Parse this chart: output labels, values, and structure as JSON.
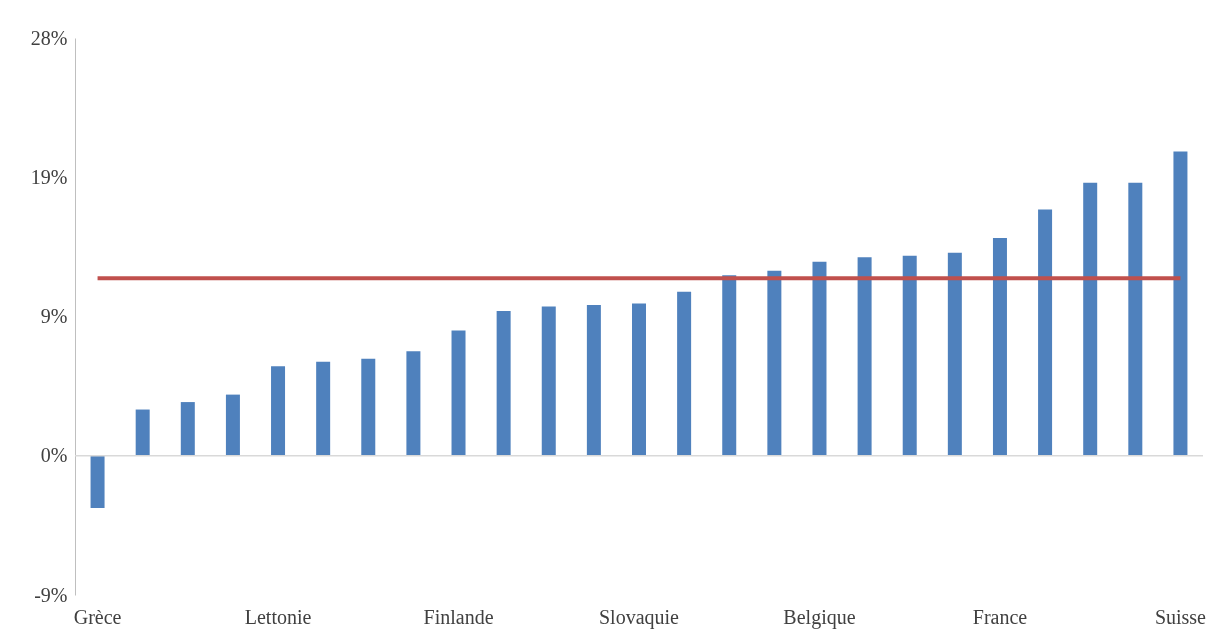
{
  "chart_data": {
    "type": "bar",
    "categories": [
      "Grèce",
      null,
      null,
      null,
      "Lettonie",
      null,
      null,
      null,
      "Finlande",
      null,
      null,
      null,
      "Slovaquie",
      null,
      null,
      null,
      "Belgique",
      null,
      null,
      null,
      "France",
      null,
      null,
      null,
      "Suisse"
    ],
    "series": [
      {
        "color": "#4f81bd",
        "values": [
          -3.5,
          3.1,
          3.6,
          4.1,
          6.0,
          6.3,
          6.5,
          7.0,
          8.4,
          9.7,
          10.0,
          10.1,
          10.2,
          11.0,
          12.1,
          12.4,
          13.0,
          13.3,
          13.4,
          13.6,
          14.6,
          16.5,
          18.3,
          18.3,
          20.4
        ]
      }
    ],
    "ylim": [
      -9.33,
      28
    ],
    "yticks": [
      {
        "value": -9.33,
        "label": "-9%"
      },
      {
        "value": 0,
        "label": "0%"
      },
      {
        "value": 9.33,
        "label": "9%"
      },
      {
        "value": 18.67,
        "label": "19%"
      },
      {
        "value": 28,
        "label": "28%"
      }
    ],
    "ref_lines": [
      {
        "axis": "y",
        "value": 11.9,
        "color": "#c0504d"
      }
    ]
  }
}
